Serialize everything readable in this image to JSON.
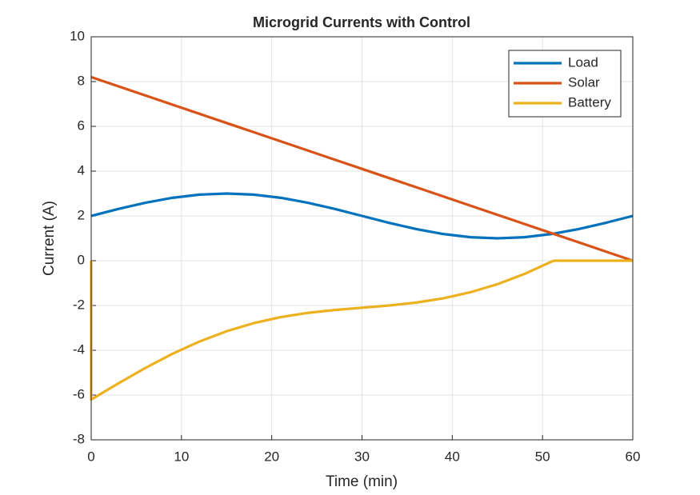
{
  "chart_data": {
    "type": "line",
    "title": "Microgrid Currents with Control",
    "xlabel": "Time (min)",
    "ylabel": "Current (A)",
    "x": [
      0,
      3,
      6,
      9,
      12,
      15,
      18,
      21,
      24,
      27,
      30,
      33,
      36,
      39,
      42,
      45,
      48,
      51,
      54,
      57,
      60
    ],
    "series": [
      {
        "name": "Load",
        "color": "#0072BD",
        "values": [
          2,
          2.309,
          2.588,
          2.809,
          2.951,
          3,
          2.951,
          2.809,
          2.588,
          2.309,
          2,
          1.691,
          1.412,
          1.191,
          1.049,
          1,
          1.049,
          1.191,
          1.412,
          1.691,
          2
        ]
      },
      {
        "name": "Solar",
        "color": "#D95319",
        "values": [
          8.2,
          7.79,
          7.38,
          6.97,
          6.56,
          6.15,
          5.74,
          5.33,
          4.92,
          4.51,
          4.1,
          3.69,
          3.28,
          2.87,
          2.46,
          2.05,
          1.64,
          1.23,
          0.82,
          0.41,
          0
        ]
      },
      {
        "name": "Battery",
        "color": "#EDB120",
        "x": [
          0,
          0,
          3,
          6,
          9,
          12,
          15,
          18,
          21,
          24,
          27,
          30,
          33,
          36,
          39,
          42,
          45,
          48,
          51,
          51.3,
          54,
          57,
          60
        ],
        "values": [
          0,
          -6.2,
          -5.48,
          -4.79,
          -4.16,
          -3.61,
          -3.15,
          -2.79,
          -2.52,
          -2.33,
          -2.2,
          -2.1,
          -2.0,
          -1.87,
          -1.68,
          -1.41,
          -1.05,
          -0.59,
          -0.04,
          0,
          0,
          0,
          0
        ]
      }
    ],
    "xlim": [
      0,
      60
    ],
    "xticks": [
      0,
      10,
      20,
      30,
      40,
      50,
      60
    ],
    "ylim": [
      -8,
      10
    ],
    "yticks": [
      -8,
      -6,
      -4,
      -2,
      0,
      2,
      4,
      6,
      8,
      10
    ],
    "grid": true,
    "legend": "top-right"
  }
}
